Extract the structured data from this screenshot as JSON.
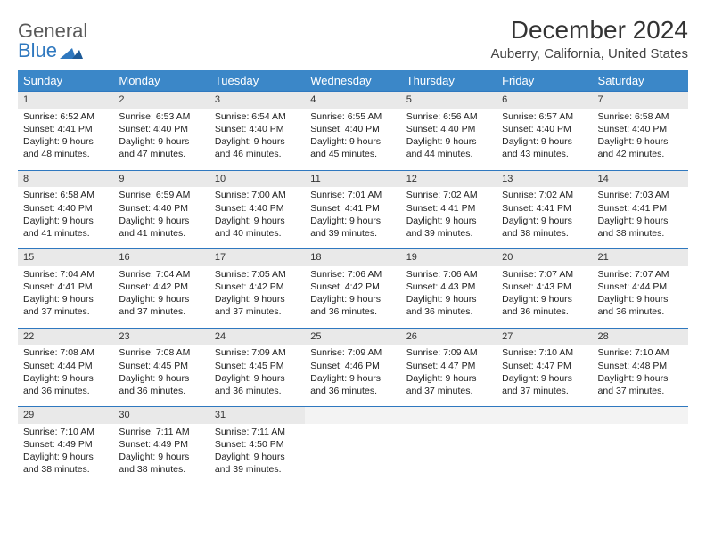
{
  "logo": {
    "line1": "General",
    "line2": "Blue"
  },
  "title": "December 2024",
  "location": "Auberry, California, United States",
  "colors": {
    "header_bg": "#3b87c8",
    "header_text": "#ffffff",
    "rule": "#2f78bf",
    "daynum_bg": "#e9e9e9",
    "logo_gray": "#5a5a5a",
    "logo_blue": "#2f78bf"
  },
  "columns": [
    "Sunday",
    "Monday",
    "Tuesday",
    "Wednesday",
    "Thursday",
    "Friday",
    "Saturday"
  ],
  "weeks": [
    [
      {
        "day": "1",
        "sunrise": "Sunrise: 6:52 AM",
        "sunset": "Sunset: 4:41 PM",
        "dl1": "Daylight: 9 hours",
        "dl2": "and 48 minutes."
      },
      {
        "day": "2",
        "sunrise": "Sunrise: 6:53 AM",
        "sunset": "Sunset: 4:40 PM",
        "dl1": "Daylight: 9 hours",
        "dl2": "and 47 minutes."
      },
      {
        "day": "3",
        "sunrise": "Sunrise: 6:54 AM",
        "sunset": "Sunset: 4:40 PM",
        "dl1": "Daylight: 9 hours",
        "dl2": "and 46 minutes."
      },
      {
        "day": "4",
        "sunrise": "Sunrise: 6:55 AM",
        "sunset": "Sunset: 4:40 PM",
        "dl1": "Daylight: 9 hours",
        "dl2": "and 45 minutes."
      },
      {
        "day": "5",
        "sunrise": "Sunrise: 6:56 AM",
        "sunset": "Sunset: 4:40 PM",
        "dl1": "Daylight: 9 hours",
        "dl2": "and 44 minutes."
      },
      {
        "day": "6",
        "sunrise": "Sunrise: 6:57 AM",
        "sunset": "Sunset: 4:40 PM",
        "dl1": "Daylight: 9 hours",
        "dl2": "and 43 minutes."
      },
      {
        "day": "7",
        "sunrise": "Sunrise: 6:58 AM",
        "sunset": "Sunset: 4:40 PM",
        "dl1": "Daylight: 9 hours",
        "dl2": "and 42 minutes."
      }
    ],
    [
      {
        "day": "8",
        "sunrise": "Sunrise: 6:58 AM",
        "sunset": "Sunset: 4:40 PM",
        "dl1": "Daylight: 9 hours",
        "dl2": "and 41 minutes."
      },
      {
        "day": "9",
        "sunrise": "Sunrise: 6:59 AM",
        "sunset": "Sunset: 4:40 PM",
        "dl1": "Daylight: 9 hours",
        "dl2": "and 41 minutes."
      },
      {
        "day": "10",
        "sunrise": "Sunrise: 7:00 AM",
        "sunset": "Sunset: 4:40 PM",
        "dl1": "Daylight: 9 hours",
        "dl2": "and 40 minutes."
      },
      {
        "day": "11",
        "sunrise": "Sunrise: 7:01 AM",
        "sunset": "Sunset: 4:41 PM",
        "dl1": "Daylight: 9 hours",
        "dl2": "and 39 minutes."
      },
      {
        "day": "12",
        "sunrise": "Sunrise: 7:02 AM",
        "sunset": "Sunset: 4:41 PM",
        "dl1": "Daylight: 9 hours",
        "dl2": "and 39 minutes."
      },
      {
        "day": "13",
        "sunrise": "Sunrise: 7:02 AM",
        "sunset": "Sunset: 4:41 PM",
        "dl1": "Daylight: 9 hours",
        "dl2": "and 38 minutes."
      },
      {
        "day": "14",
        "sunrise": "Sunrise: 7:03 AM",
        "sunset": "Sunset: 4:41 PM",
        "dl1": "Daylight: 9 hours",
        "dl2": "and 38 minutes."
      }
    ],
    [
      {
        "day": "15",
        "sunrise": "Sunrise: 7:04 AM",
        "sunset": "Sunset: 4:41 PM",
        "dl1": "Daylight: 9 hours",
        "dl2": "and 37 minutes."
      },
      {
        "day": "16",
        "sunrise": "Sunrise: 7:04 AM",
        "sunset": "Sunset: 4:42 PM",
        "dl1": "Daylight: 9 hours",
        "dl2": "and 37 minutes."
      },
      {
        "day": "17",
        "sunrise": "Sunrise: 7:05 AM",
        "sunset": "Sunset: 4:42 PM",
        "dl1": "Daylight: 9 hours",
        "dl2": "and 37 minutes."
      },
      {
        "day": "18",
        "sunrise": "Sunrise: 7:06 AM",
        "sunset": "Sunset: 4:42 PM",
        "dl1": "Daylight: 9 hours",
        "dl2": "and 36 minutes."
      },
      {
        "day": "19",
        "sunrise": "Sunrise: 7:06 AM",
        "sunset": "Sunset: 4:43 PM",
        "dl1": "Daylight: 9 hours",
        "dl2": "and 36 minutes."
      },
      {
        "day": "20",
        "sunrise": "Sunrise: 7:07 AM",
        "sunset": "Sunset: 4:43 PM",
        "dl1": "Daylight: 9 hours",
        "dl2": "and 36 minutes."
      },
      {
        "day": "21",
        "sunrise": "Sunrise: 7:07 AM",
        "sunset": "Sunset: 4:44 PM",
        "dl1": "Daylight: 9 hours",
        "dl2": "and 36 minutes."
      }
    ],
    [
      {
        "day": "22",
        "sunrise": "Sunrise: 7:08 AM",
        "sunset": "Sunset: 4:44 PM",
        "dl1": "Daylight: 9 hours",
        "dl2": "and 36 minutes."
      },
      {
        "day": "23",
        "sunrise": "Sunrise: 7:08 AM",
        "sunset": "Sunset: 4:45 PM",
        "dl1": "Daylight: 9 hours",
        "dl2": "and 36 minutes."
      },
      {
        "day": "24",
        "sunrise": "Sunrise: 7:09 AM",
        "sunset": "Sunset: 4:45 PM",
        "dl1": "Daylight: 9 hours",
        "dl2": "and 36 minutes."
      },
      {
        "day": "25",
        "sunrise": "Sunrise: 7:09 AM",
        "sunset": "Sunset: 4:46 PM",
        "dl1": "Daylight: 9 hours",
        "dl2": "and 36 minutes."
      },
      {
        "day": "26",
        "sunrise": "Sunrise: 7:09 AM",
        "sunset": "Sunset: 4:47 PM",
        "dl1": "Daylight: 9 hours",
        "dl2": "and 37 minutes."
      },
      {
        "day": "27",
        "sunrise": "Sunrise: 7:10 AM",
        "sunset": "Sunset: 4:47 PM",
        "dl1": "Daylight: 9 hours",
        "dl2": "and 37 minutes."
      },
      {
        "day": "28",
        "sunrise": "Sunrise: 7:10 AM",
        "sunset": "Sunset: 4:48 PM",
        "dl1": "Daylight: 9 hours",
        "dl2": "and 37 minutes."
      }
    ],
    [
      {
        "day": "29",
        "sunrise": "Sunrise: 7:10 AM",
        "sunset": "Sunset: 4:49 PM",
        "dl1": "Daylight: 9 hours",
        "dl2": "and 38 minutes."
      },
      {
        "day": "30",
        "sunrise": "Sunrise: 7:11 AM",
        "sunset": "Sunset: 4:49 PM",
        "dl1": "Daylight: 9 hours",
        "dl2": "and 38 minutes."
      },
      {
        "day": "31",
        "sunrise": "Sunrise: 7:11 AM",
        "sunset": "Sunset: 4:50 PM",
        "dl1": "Daylight: 9 hours",
        "dl2": "and 39 minutes."
      },
      null,
      null,
      null,
      null
    ]
  ]
}
